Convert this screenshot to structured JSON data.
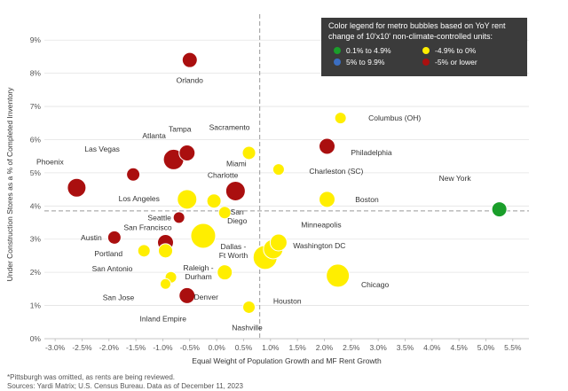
{
  "chart_data": {
    "type": "scatter",
    "xlabel": "Equal Weight of Population Growth and MF Rent Growth",
    "ylabel": "Under Construction Stores as a % of Completed Inventory",
    "xlim": [
      -3.2,
      5.8
    ],
    "ylim": [
      0,
      9.3
    ],
    "x_ticks": [
      -3.0,
      -2.5,
      -2.0,
      -1.5,
      -1.0,
      -0.5,
      0.0,
      0.5,
      1.0,
      1.5,
      2.0,
      2.5,
      3.0,
      3.5,
      4.0,
      4.5,
      5.0,
      5.5
    ],
    "x_tick_labels": [
      "-3.0%",
      "-2.5%",
      "-2.0%",
      "-1.5%",
      "-1.0%",
      "-0.5%",
      "0.0%",
      "0.5%",
      "1.0%",
      "1.5%",
      "2.0%",
      "2.5%",
      "3.0%",
      "3.5%",
      "4.0%",
      "4.5%",
      "5.0%",
      "5.5%"
    ],
    "y_ticks": [
      0,
      1,
      2,
      3,
      4,
      5,
      6,
      7,
      8,
      9
    ],
    "y_tick_labels": [
      "0%",
      "1%",
      "2%",
      "3%",
      "4%",
      "5%",
      "6%",
      "7%",
      "8%",
      "9%"
    ],
    "reference_lines": {
      "x": 0.8,
      "y": 3.85
    },
    "legend": {
      "title": "Color legend for metro bubbles based on YoY rent change of 10'x10' non-climate-controlled units:",
      "items": [
        {
          "label": "0.1% to 4.9%",
          "color": "#1a9e2a"
        },
        {
          "label": "-4.9% to 0%",
          "color": "#ffee00"
        },
        {
          "label": "5% to 9.9%",
          "color": "#3b6ec2"
        },
        {
          "label": "-5% or lower",
          "color": "#aa0f0f"
        }
      ]
    },
    "points": [
      {
        "name": "Orlando",
        "label": "Orlando",
        "x": -0.5,
        "y": 8.4,
        "size": 8.5,
        "color": "#aa0f0f"
      },
      {
        "name": "Tampa",
        "label": "Tampa",
        "x": -0.55,
        "y": 5.6,
        "size": 9,
        "color": "#aa0f0f"
      },
      {
        "name": "Atlanta",
        "label": "Atlanta",
        "x": -0.8,
        "y": 5.4,
        "size": 11.5,
        "color": "#aa0f0f"
      },
      {
        "name": "Las Vegas",
        "label": "Las Vegas",
        "x": -1.55,
        "y": 4.95,
        "size": 7.5,
        "color": "#aa0f0f"
      },
      {
        "name": "Phoenix",
        "label": "Phoenix",
        "x": -2.6,
        "y": 4.55,
        "size": 10.5,
        "color": "#aa0f0f"
      },
      {
        "name": "Miami",
        "label": "Miami",
        "x": 0.35,
        "y": 4.45,
        "size": 11,
        "color": "#aa0f0f"
      },
      {
        "name": "Sacramento",
        "label": "Sacramento",
        "x": 0.6,
        "y": 5.6,
        "size": 7.5,
        "color": "#ffee00"
      },
      {
        "name": "Charlotte",
        "label": "Charlotte",
        "x": -0.05,
        "y": 4.15,
        "size": 8,
        "color": "#ffee00"
      },
      {
        "name": "Los Angeles",
        "label": "Los Angeles",
        "x": -0.55,
        "y": 4.2,
        "size": 11,
        "color": "#ffee00"
      },
      {
        "name": "Seattle",
        "label": "Seattle",
        "x": -0.7,
        "y": 3.65,
        "size": 6.5,
        "color": "#aa0f0f"
      },
      {
        "name": "San Diego",
        "label": "San\nDiego",
        "x": 0.15,
        "y": 3.8,
        "size": 7,
        "color": "#ffee00"
      },
      {
        "name": "Austin",
        "label": "Austin",
        "x": -1.9,
        "y": 3.05,
        "size": 7.5,
        "color": "#aa0f0f"
      },
      {
        "name": "San Francisco",
        "label": "San Francisco",
        "x": -0.95,
        "y": 2.9,
        "size": 9,
        "color": "#aa0f0f"
      },
      {
        "name": "Dallas - Ft Worth",
        "label": "Dallas -\nFt Worth",
        "x": -0.25,
        "y": 3.1,
        "size": 14,
        "color": "#ffee00"
      },
      {
        "name": "Portland",
        "label": "Portland",
        "x": -1.35,
        "y": 2.65,
        "size": 7,
        "color": "#ffee00"
      },
      {
        "name": "San Antonio",
        "label": "San Antonio",
        "x": -0.95,
        "y": 2.65,
        "size": 8,
        "color": "#ffee00"
      },
      {
        "name": "Raleigh - Durham",
        "label": "Raleigh -\nDurham",
        "x": -0.85,
        "y": 1.85,
        "size": 6.5,
        "color": "#ffee00"
      },
      {
        "name": "San Jose",
        "label": "San Jose",
        "x": -0.95,
        "y": 1.65,
        "size": 6,
        "color": "#ffee00"
      },
      {
        "name": "Denver",
        "label": "Denver",
        "x": 0.15,
        "y": 2.0,
        "size": 8.5,
        "color": "#ffee00"
      },
      {
        "name": "Inland Empire",
        "label": "Inland Empire",
        "x": -0.55,
        "y": 1.3,
        "size": 9,
        "color": "#aa0f0f"
      },
      {
        "name": "Nashville",
        "label": "Nashville",
        "x": 0.6,
        "y": 0.95,
        "size": 7,
        "color": "#ffee00"
      },
      {
        "name": "Minneapolis",
        "label": "Minneapolis",
        "x": 1.15,
        "y": 2.9,
        "size": 9.5,
        "color": "#ffee00"
      },
      {
        "name": "Washington DC",
        "label": "Washington DC",
        "x": 1.05,
        "y": 2.7,
        "size": 11,
        "color": "#ffee00"
      },
      {
        "name": "Houston",
        "label": "Houston",
        "x": 0.9,
        "y": 2.45,
        "size": 13.5,
        "color": "#ffee00"
      },
      {
        "name": "Chicago",
        "label": "Chicago",
        "x": 2.25,
        "y": 1.9,
        "size": 13,
        "color": "#ffee00"
      },
      {
        "name": "Columbus (OH)",
        "label": "Columbus (OH)",
        "x": 2.3,
        "y": 6.65,
        "size": 6.5,
        "color": "#ffee00"
      },
      {
        "name": "Philadelphia",
        "label": "Philadelphia",
        "x": 2.05,
        "y": 5.8,
        "size": 9,
        "color": "#aa0f0f"
      },
      {
        "name": "Charleston (SC)",
        "label": "Charleston (SC)",
        "x": 1.15,
        "y": 5.1,
        "size": 6.5,
        "color": "#ffee00"
      },
      {
        "name": "Boston",
        "label": "Boston",
        "x": 2.05,
        "y": 4.2,
        "size": 9,
        "color": "#ffee00"
      },
      {
        "name": "New York",
        "label": "New York",
        "x": 5.25,
        "y": 3.9,
        "size": 8.5,
        "color": "#1a9e2a"
      }
    ]
  },
  "footnotes": {
    "note": "*Pittsburgh was omitted, as rents are being reviewed.",
    "sources": "Sources: Yardi Matrix; U.S. Census Bureau. Data as of December 11, 2023"
  }
}
